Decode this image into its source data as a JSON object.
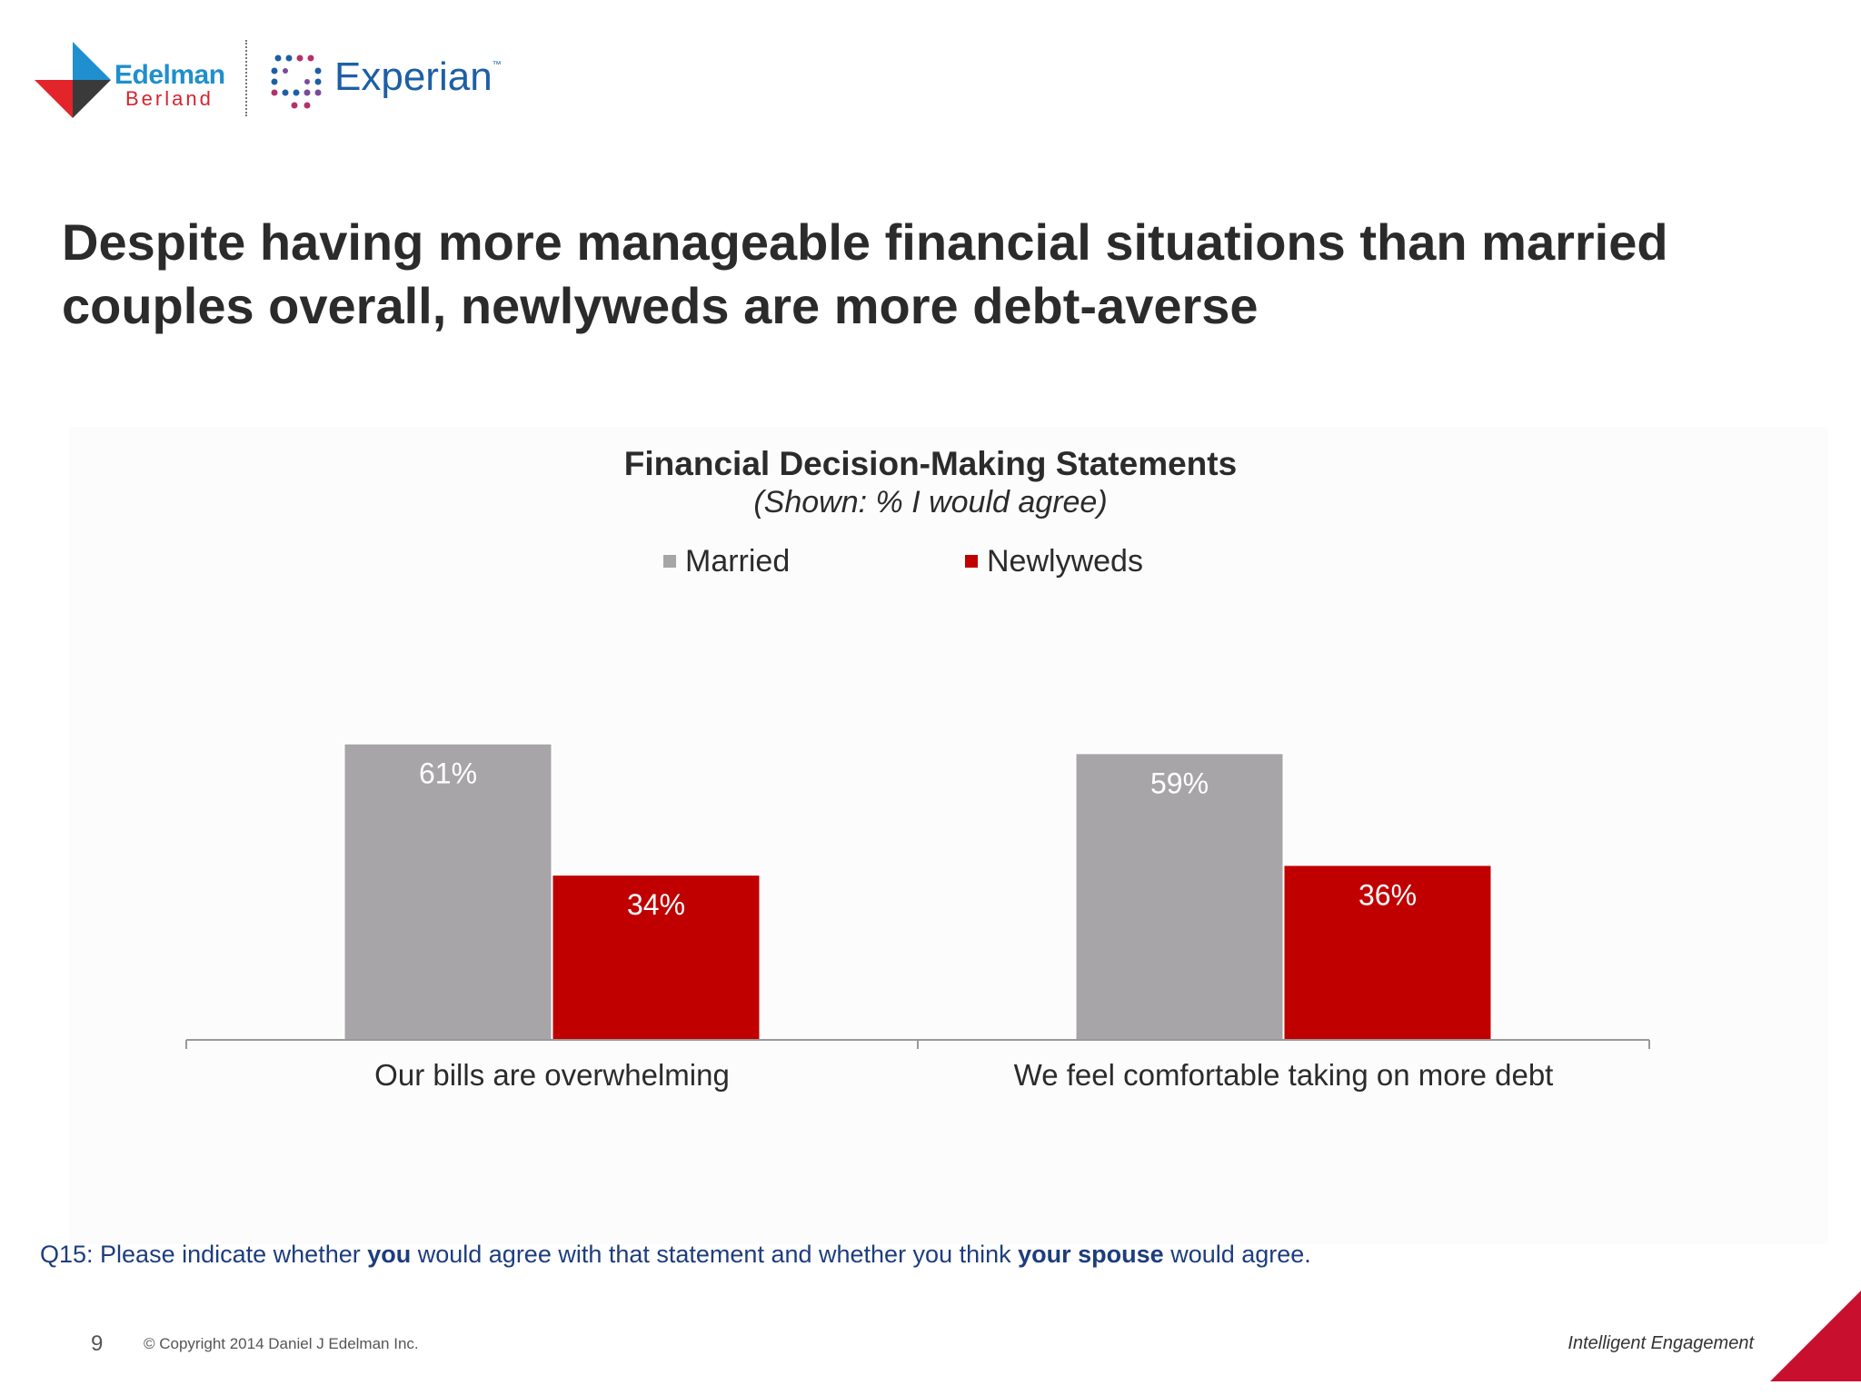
{
  "header": {
    "edelman_name": "Edelman",
    "berland_name": "Berland",
    "experian_name": "Experian",
    "experian_tm": "™"
  },
  "page_title": "Despite having more manageable financial situations than married couples overall, newlyweds are more debt-averse",
  "colors": {
    "married": "#a7a5a8",
    "newlyweds": "#c00000",
    "axis": "#999999",
    "label_inside": "#ffffff"
  },
  "chart_data": {
    "type": "bar",
    "title": "Financial Decision-Making Statements",
    "subtitle": "(Shown: % I would agree)",
    "categories": [
      "Our bills are overwhelming",
      "We feel comfortable taking on more debt"
    ],
    "series": [
      {
        "name": "Married",
        "values": [
          61,
          59
        ],
        "labels": [
          "61%",
          "59%"
        ]
      },
      {
        "name": "Newlyweds",
        "values": [
          34,
          36
        ],
        "labels": [
          "34%",
          "36%"
        ]
      }
    ],
    "ylim": [
      0,
      100
    ],
    "legend_position": "top-center",
    "grid": false
  },
  "footer": {
    "question_prefix": "Q15: Please indicate whether ",
    "question_bold1": "you",
    "question_mid": " would agree with that statement and whether you think ",
    "question_bold2": "your spouse",
    "question_suffix": " would agree.",
    "page_number": "9",
    "copyright": "© Copyright 2014 Daniel J Edelman Inc.",
    "tagline": "Intelligent Engagement"
  }
}
